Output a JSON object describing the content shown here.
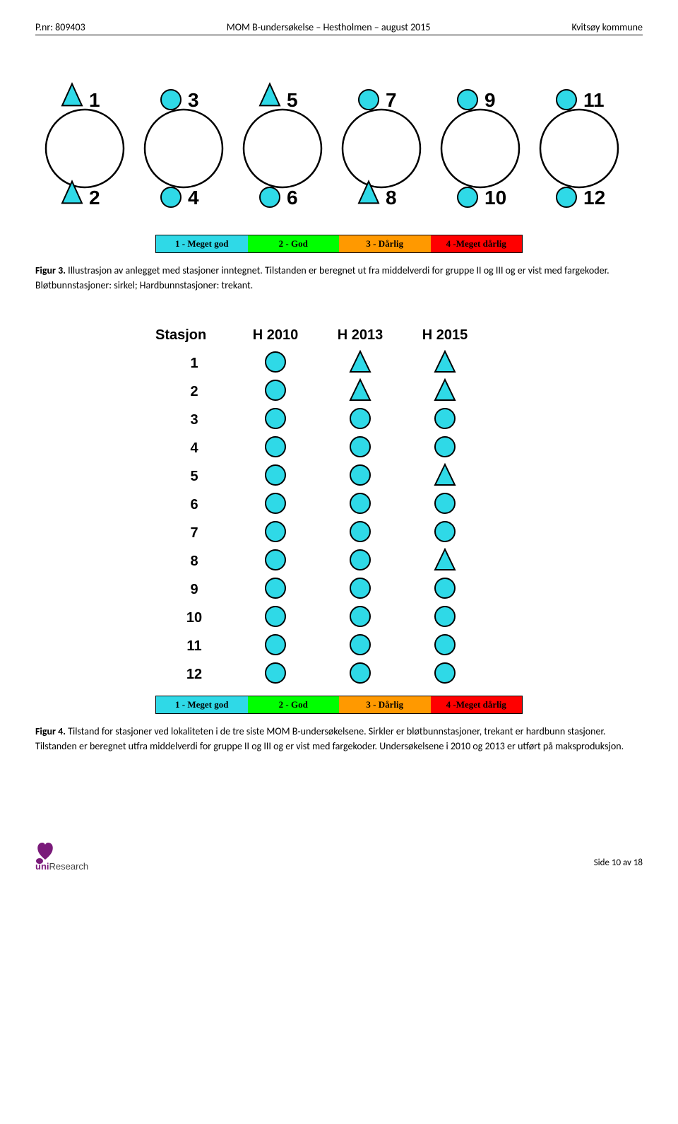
{
  "header": {
    "left": "P.nr: 809403",
    "center": "MOM B-undersøkelse – Hestholmen – august 2015",
    "right": "Kvitsøy kommune"
  },
  "colors": {
    "cyan": "#2fd9e7",
    "cage_stroke": "#000000",
    "legend1": "#2fd9e7",
    "legend2": "#00ff00",
    "legend3": "#ff9900",
    "legend4": "#ff0000",
    "background": "#ffffff"
  },
  "legend": {
    "items": [
      {
        "label": "1 - Meget god",
        "bg_key": "legend1",
        "text_color": "#000000"
      },
      {
        "label": "2 - God",
        "bg_key": "legend2",
        "text_color": "#000000"
      },
      {
        "label": "3 - Dårlig",
        "bg_key": "legend3",
        "text_color": "#000000"
      },
      {
        "label": "4 -Meget dårlig",
        "bg_key": "legend4",
        "text_color": "#000000"
      }
    ]
  },
  "fig3": {
    "stations": [
      {
        "n": "1",
        "pos": "top",
        "shape": "triangle"
      },
      {
        "n": "2",
        "pos": "bottom",
        "shape": "triangle"
      },
      {
        "n": "3",
        "pos": "top",
        "shape": "circle"
      },
      {
        "n": "4",
        "pos": "bottom",
        "shape": "circle"
      },
      {
        "n": "5",
        "pos": "top",
        "shape": "triangle"
      },
      {
        "n": "6",
        "pos": "bottom",
        "shape": "circle"
      },
      {
        "n": "7",
        "pos": "top",
        "shape": "circle"
      },
      {
        "n": "8",
        "pos": "bottom",
        "shape": "triangle"
      },
      {
        "n": "9",
        "pos": "top",
        "shape": "circle"
      },
      {
        "n": "10",
        "pos": "bottom",
        "shape": "circle"
      },
      {
        "n": "11",
        "pos": "top",
        "shape": "circle"
      },
      {
        "n": "12",
        "pos": "bottom",
        "shape": "circle"
      }
    ],
    "cage_radius": 55,
    "cage_spacing": 140,
    "small_r": 14,
    "caption": "Figur 3. Illustrasjon av anlegget med stasjoner inntegnet. Tilstanden er beregnet ut fra middelverdi for gruppe II og III og er vist med fargekoder. Bløtbunnstasjoner: sirkel; Hardbunnstasjoner: trekant."
  },
  "fig4": {
    "col_label": "Stasjon",
    "years": [
      "H 2010",
      "H 2013",
      "H 2015"
    ],
    "rows": [
      {
        "n": "1",
        "cells": [
          "circle",
          "triangle",
          "triangle"
        ]
      },
      {
        "n": "2",
        "cells": [
          "circle",
          "triangle",
          "triangle"
        ]
      },
      {
        "n": "3",
        "cells": [
          "circle",
          "circle",
          "circle"
        ]
      },
      {
        "n": "4",
        "cells": [
          "circle",
          "circle",
          "circle"
        ]
      },
      {
        "n": "5",
        "cells": [
          "circle",
          "circle",
          "triangle"
        ]
      },
      {
        "n": "6",
        "cells": [
          "circle",
          "circle",
          "circle"
        ]
      },
      {
        "n": "7",
        "cells": [
          "circle",
          "circle",
          "circle"
        ]
      },
      {
        "n": "8",
        "cells": [
          "circle",
          "circle",
          "triangle"
        ]
      },
      {
        "n": "9",
        "cells": [
          "circle",
          "circle",
          "circle"
        ]
      },
      {
        "n": "10",
        "cells": [
          "circle",
          "circle",
          "circle"
        ]
      },
      {
        "n": "11",
        "cells": [
          "circle",
          "circle",
          "circle"
        ]
      },
      {
        "n": "12",
        "cells": [
          "circle",
          "circle",
          "circle"
        ]
      }
    ],
    "caption": "Figur 4. Tilstand for stasjoner ved lokaliteten i de tre siste MOM B-undersøkelsene. Sirkler er bløtbunnstasjoner, trekant er hardbunn stasjoner. Tilstanden er beregnet utfra middelverdi for gruppe II og III og er vist med fargekoder. Undersøkelsene i 2010 og 2013 er utført på maksproduksjon."
  },
  "footer": {
    "logo_text": "Research",
    "page": "Side 10 av 18"
  }
}
